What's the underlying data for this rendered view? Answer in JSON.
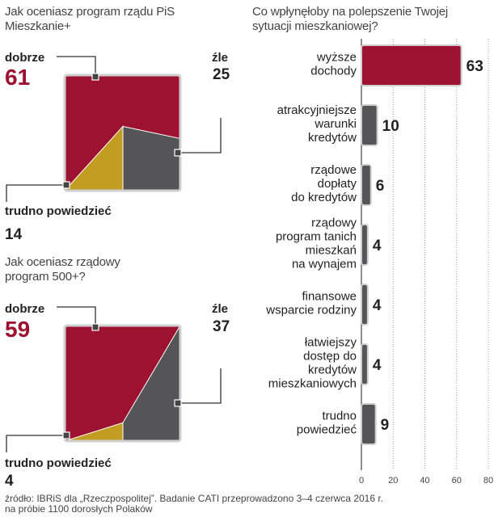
{
  "chart_data": [
    {
      "type": "pie",
      "title": "Jak oceniasz program rządu PiS Mieszkanie+",
      "slices": [
        {
          "label": "dobrze",
          "value": 61,
          "color": "#9d1230"
        },
        {
          "label": "źle",
          "value": 25,
          "color": "#555557"
        },
        {
          "label": "trudno powiedzieć",
          "value": 14,
          "color": "#c29d22"
        }
      ]
    },
    {
      "type": "pie",
      "title": "Jak oceniasz rządowy program 500+?",
      "slices": [
        {
          "label": "dobrze",
          "value": 59,
          "color": "#9d1230"
        },
        {
          "label": "źle",
          "value": 37,
          "color": "#555557"
        },
        {
          "label": "trudno powiedzieć",
          "value": 4,
          "color": "#c29d22"
        }
      ]
    },
    {
      "type": "bar",
      "orientation": "horizontal",
      "title": "Co wpłynęłoby na polepszenie Twojej sytuacji mieszkaniowej?",
      "categories": [
        [
          "wyższe",
          "dochody"
        ],
        [
          "atrakcyjniejsze",
          "warunki",
          "kredytów"
        ],
        [
          "rządowe",
          "dopłaty",
          "do kredytów"
        ],
        [
          "rządowy",
          "program tanich",
          "mieszkań",
          "na wynajem"
        ],
        [
          "finansowe",
          "wsparcie rodziny"
        ],
        [
          "łatwiejszy",
          "dostęp do",
          "kredytów",
          "mieszkaniowych"
        ],
        [
          "trudno",
          "powiedzieć"
        ]
      ],
      "values": [
        63,
        10,
        6,
        4,
        4,
        4,
        9
      ],
      "xlim": [
        0,
        80
      ],
      "xticks": [
        "0",
        "20",
        "40",
        "60",
        "80"
      ],
      "highlight_color": "#9d1230",
      "bar_color": "#555557"
    }
  ],
  "source": {
    "line1": "źródło: IBRiS dla „Rzeczpospolitej”. Badanie CATI przeprowadzono 3–4 czerwca 2016 r.",
    "line2": "na próbie 1100 dorosłych Polaków"
  }
}
